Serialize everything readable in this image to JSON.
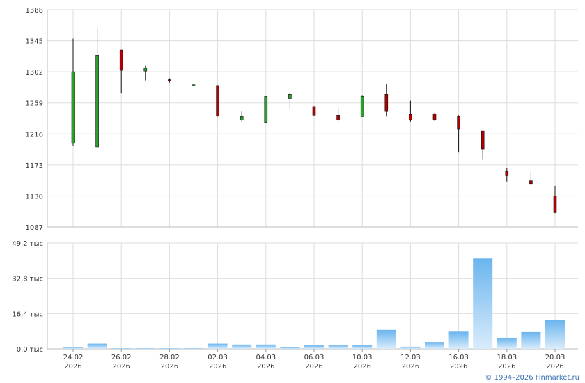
{
  "chart_data": [
    {
      "type": "candlestick",
      "title": "",
      "ylim": [
        1087,
        1388
      ],
      "yticks": [
        "1087",
        "1130",
        "1173",
        "1216",
        "1259",
        "1302",
        "1345",
        "1388"
      ],
      "grid": true,
      "candles": [
        {
          "o": 1203,
          "h": 1348,
          "l": 1200,
          "c": 1302
        },
        {
          "o": 1198,
          "h": 1363,
          "l": 1198,
          "c": 1325
        },
        {
          "o": 1332,
          "h": 1332,
          "l": 1272,
          "c": 1304
        },
        {
          "o": 1303,
          "h": 1310,
          "l": 1290,
          "c": 1307
        },
        {
          "o": 1291,
          "h": 1293,
          "l": 1287,
          "c": 1290
        },
        {
          "o": 1284,
          "h": 1285,
          "l": 1283,
          "c": 1284
        },
        {
          "o": 1283,
          "h": 1283,
          "l": 1240,
          "c": 1241
        },
        {
          "o": 1235,
          "h": 1247,
          "l": 1233,
          "c": 1240
        },
        {
          "o": 1232,
          "h": 1268,
          "l": 1232,
          "c": 1268
        },
        {
          "o": 1265,
          "h": 1274,
          "l": 1250,
          "c": 1271
        },
        {
          "o": 1254,
          "h": 1254,
          "l": 1242,
          "c": 1242
        },
        {
          "o": 1242,
          "h": 1253,
          "l": 1233,
          "c": 1235
        },
        {
          "o": 1240,
          "h": 1269,
          "l": 1240,
          "c": 1268
        },
        {
          "o": 1271,
          "h": 1285,
          "l": 1240,
          "c": 1247
        },
        {
          "o": 1243,
          "h": 1262,
          "l": 1233,
          "c": 1235
        },
        {
          "o": 1244,
          "h": 1245,
          "l": 1234,
          "c": 1235
        },
        {
          "o": 1240,
          "h": 1242,
          "l": 1191,
          "c": 1223
        },
        {
          "o": 1220,
          "h": 1220,
          "l": 1180,
          "c": 1195
        },
        {
          "o": 1164,
          "h": 1169,
          "l": 1150,
          "c": 1158
        },
        {
          "o": 1151,
          "h": 1164,
          "l": 1147,
          "c": 1147
        },
        {
          "o": 1130,
          "h": 1144,
          "l": 1106,
          "c": 1107
        }
      ]
    },
    {
      "type": "bar",
      "ylim": [
        0,
        49.2
      ],
      "yticks": [
        "0,0 тыс",
        "16,4 тыс",
        "32,8 тыс",
        "49,2 тыс"
      ],
      "values": [
        0.8,
        2.4,
        0.3,
        0.3,
        0.3,
        0.3,
        2.4,
        2.0,
        2.0,
        0.7,
        1.6,
        1.9,
        1.6,
        8.8,
        1.0,
        3.2,
        8.0,
        42.0,
        5.2,
        7.8,
        13.3
      ]
    }
  ],
  "x_axis": {
    "labels": [
      {
        "slot": 0,
        "date": "24.02",
        "year": "2026"
      },
      {
        "slot": 2,
        "date": "26.02",
        "year": "2026"
      },
      {
        "slot": 4,
        "date": "28.02",
        "year": "2026"
      },
      {
        "slot": 6,
        "date": "02.03",
        "year": "2026"
      },
      {
        "slot": 8,
        "date": "04.03",
        "year": "2026"
      },
      {
        "slot": 10,
        "date": "06.03",
        "year": "2026"
      },
      {
        "slot": 12,
        "date": "10.03",
        "year": "2026"
      },
      {
        "slot": 14,
        "date": "12.03",
        "year": "2026"
      },
      {
        "slot": 16,
        "date": "16.03",
        "year": "2026"
      },
      {
        "slot": 18,
        "date": "18.03",
        "year": "2026"
      },
      {
        "slot": 20,
        "date": "20.03",
        "year": "2026"
      }
    ]
  },
  "colors": {
    "up": "#2ca02c",
    "down": "#b00000",
    "grid": "#dddddd",
    "bar_top": "#6bb5ee",
    "bar_bottom": "#d9ecfb"
  },
  "footer": {
    "copyright": "© 1994–2026 Finmarket.ru"
  }
}
